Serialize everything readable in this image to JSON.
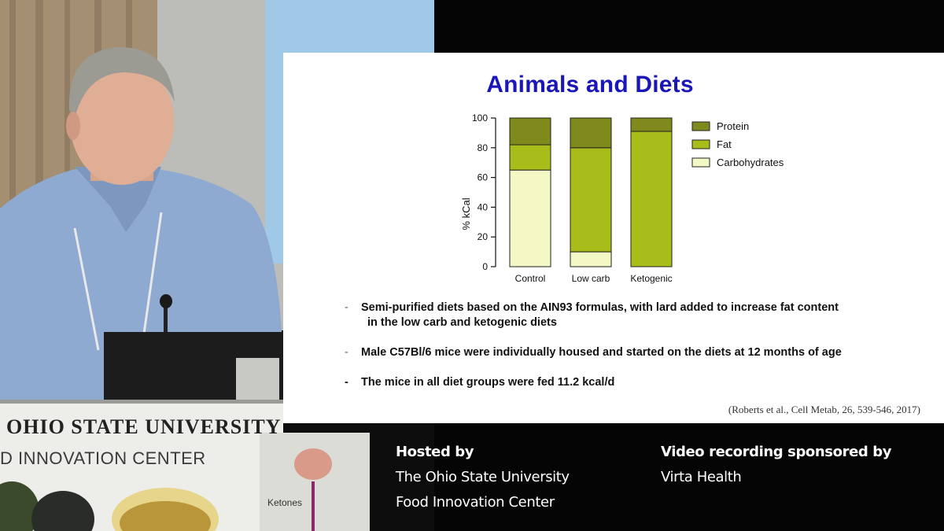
{
  "slide": {
    "title": "Animals and Diets",
    "bullets": [
      {
        "dash": "-",
        "line1": "Semi-purified diets based on the AIN93 formulas, with lard added to increase fat content",
        "line2": "in the low carb and ketogenic diets"
      },
      {
        "dash": "-",
        "line1": "Male C57Bl/6 mice were individually housed and started on the diets at 12 months of age",
        "line2": ""
      },
      {
        "dash": "-",
        "line1": "The mice in all diet groups were fed 11.2 kcal/d",
        "line2": ""
      }
    ],
    "citation": "(Roberts et al., Cell Metab, 26, 539-546, 2017)"
  },
  "chart_data": {
    "type": "bar",
    "stacked": true,
    "categories": [
      "Control",
      "Low carb",
      "Ketogenic"
    ],
    "series": [
      {
        "name": "Carbohydrates",
        "values": [
          65,
          10,
          0
        ],
        "color": "#f4f8c4"
      },
      {
        "name": "Fat",
        "values": [
          17,
          70,
          91
        ],
        "color": "#a8bc1a"
      },
      {
        "name": "Protein",
        "values": [
          18,
          20,
          9
        ],
        "color": "#808a1c"
      }
    ],
    "ylabel": "% kCal",
    "xlabel": "",
    "ylim": [
      0,
      100
    ],
    "yticks": [
      0,
      20,
      40,
      60,
      80,
      100
    ],
    "legend_position": "right",
    "legend_order": [
      "Protein",
      "Fat",
      "Carbohydrates"
    ],
    "grid": false
  },
  "caption": {
    "hosted_heading": "Hosted by",
    "hosted_line1": "The Ohio State University",
    "hosted_line2": "Food Innovation Center",
    "sponsor_heading": "Video recording sponsored by",
    "sponsor_line1": "Virta Health"
  },
  "podium": {
    "line1": "OHIO STATE UNIVERSITY",
    "line2": "D INNOVATION CENTER",
    "poster_label": "Ketones"
  }
}
